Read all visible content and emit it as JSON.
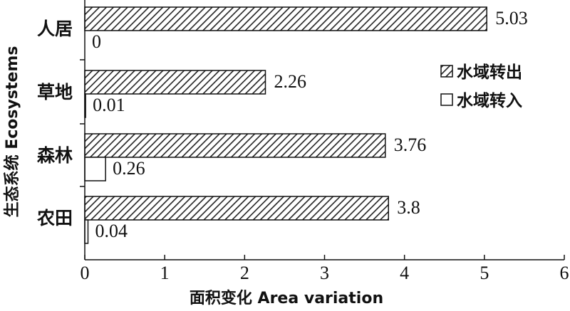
{
  "chart_data": {
    "type": "bar",
    "orientation": "horizontal",
    "categories": [
      "人居",
      "草地",
      "森林",
      "农田"
    ],
    "series": [
      {
        "name": "水域转出",
        "values": [
          5.03,
          2.26,
          3.76,
          3.8
        ],
        "pattern": "hatched"
      },
      {
        "name": "水域转入",
        "values": [
          0,
          0.01,
          0.26,
          0.04
        ],
        "pattern": "empty"
      }
    ],
    "data_labels": {
      "out": [
        "5.03",
        "2.26",
        "3.76",
        "3.8"
      ],
      "in": [
        "0",
        "0.01",
        "0.26",
        "0.04"
      ]
    },
    "xlim": [
      0,
      6
    ],
    "xticks": [
      "0",
      "1",
      "2",
      "3",
      "4",
      "5",
      "6"
    ],
    "xlabel": "面积变化 Area variation",
    "ylabel": "生态系统 Ecosystems",
    "legend_position": "right",
    "grid": false
  }
}
